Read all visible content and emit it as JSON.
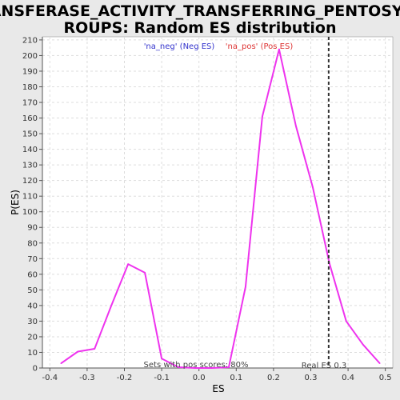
{
  "chart_data": {
    "type": "line",
    "title": "TRANSFERASE_ACTIVITY_TRANSFERRING_PENTOSYL_GROUPS: Random ES distribution",
    "title_lines": [
      "TRANSFERASE_ACTIVITY_TRANSFERRING_PENTOSYL_G",
      "ROUPS: Random ES distribution"
    ],
    "xlabel": "ES",
    "ylabel": "P(ES)",
    "xlim": [
      -0.42,
      0.52
    ],
    "ylim": [
      0,
      212
    ],
    "xticks": [
      -0.4,
      -0.3,
      -0.2,
      -0.1,
      0.0,
      0.1,
      0.2,
      0.3,
      0.4,
      0.5
    ],
    "xtick_labels": [
      "-0.4",
      "-0.3",
      "-0.2",
      "-0.1",
      "0.0",
      "0.1",
      "0.2",
      "0.3",
      "0.4",
      "0.5"
    ],
    "yticks": [
      0,
      10,
      20,
      30,
      40,
      50,
      60,
      70,
      80,
      90,
      100,
      110,
      120,
      130,
      140,
      150,
      160,
      170,
      180,
      190,
      200,
      210
    ],
    "grid": true,
    "series": [
      {
        "color": "#ee33ee",
        "x": [
          -0.37,
          -0.325,
          -0.28,
          -0.235,
          -0.19,
          -0.145,
          -0.1,
          -0.055,
          -0.01,
          0.035,
          0.08,
          0.125,
          0.17,
          0.215,
          0.26,
          0.305,
          0.35,
          0.395,
          0.44,
          0.485
        ],
        "y": [
          3,
          10.5,
          12.3,
          40,
          66.5,
          61,
          6,
          0.5,
          0,
          0,
          0.5,
          52,
          161,
          204,
          155,
          116,
          67,
          30,
          15,
          3
        ]
      }
    ],
    "annotations": {
      "neg_label": "'na_neg' (Neg ES)",
      "pos_label": "'na_pos' (Pos ES)",
      "sets_text": "Sets with pos scores: 80%",
      "real_es_text": "Real ES 0.3",
      "real_es_value": 0.348
    },
    "colors": {
      "neg_label": "#3333cc",
      "pos_label": "#dd3333",
      "real_es_line": "#333333",
      "plot_bg": "#ffffff",
      "page_bg": "#e9e9e9"
    }
  }
}
